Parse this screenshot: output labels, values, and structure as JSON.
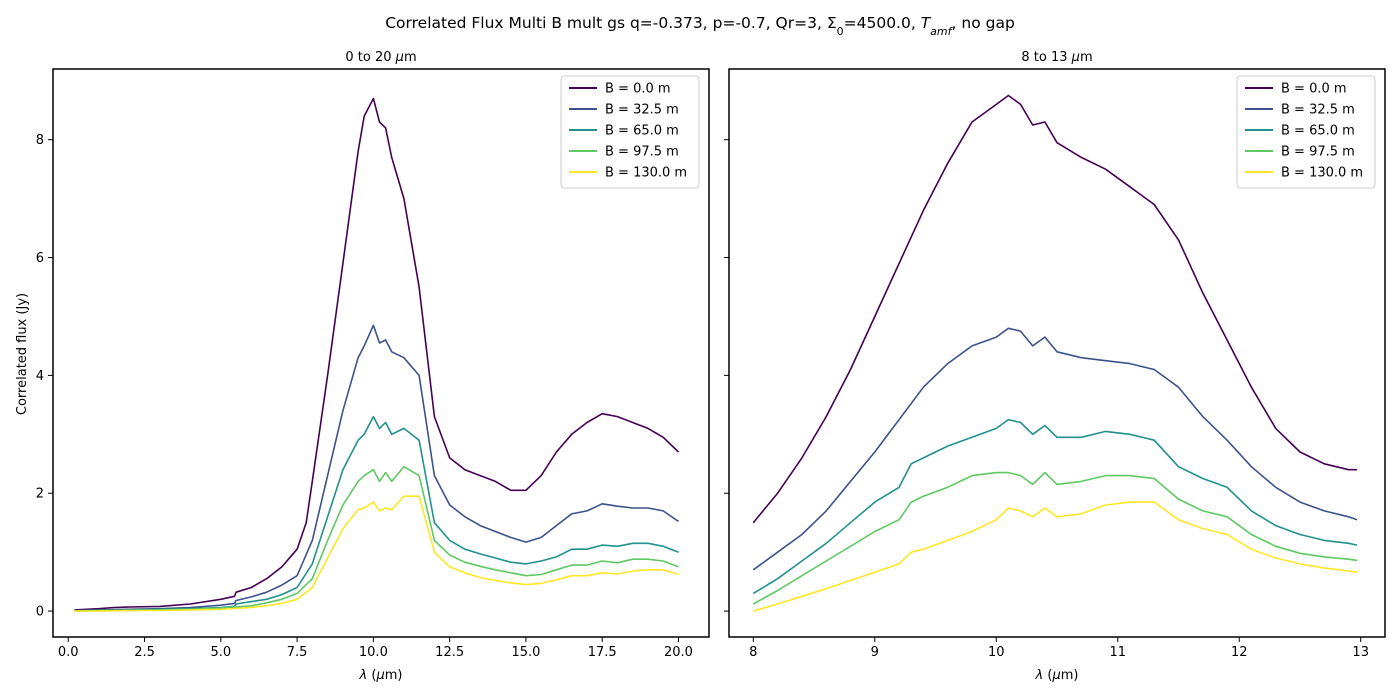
{
  "suptitle": {
    "prefix": "Correlated Flux Multi B mult gs q=-0.373, p=-0.7, Qr=3, Σ",
    "sub0": "0",
    "middle": "=4500.0, ",
    "T": "T",
    "Tsub": "amf",
    "suffix": ", no gap"
  },
  "ylabel": "Correlated flux (Jy)",
  "xlabel_prefix": "λ (",
  "xlabel_mu": "μ",
  "xlabel_suffix": "m)",
  "colors": [
    "#440154",
    "#3b528b",
    "#21918c",
    "#5ec962",
    "#fde725"
  ],
  "chart_data": [
    {
      "type": "line",
      "title_prefix": "0 to 20 ",
      "title_unit_mu": "μ",
      "title_unit_rest": "m",
      "xlabel": "λ (μm)",
      "ylabel": "Correlated flux (Jy)",
      "xlim": [
        -0.5,
        21.0
      ],
      "ylim": [
        -0.44,
        9.2
      ],
      "xticks": [
        0.0,
        2.5,
        5.0,
        7.5,
        10.0,
        12.5,
        15.0,
        17.5,
        20.0
      ],
      "xtick_labels": [
        "0.0",
        "2.5",
        "5.0",
        "7.5",
        "10.0",
        "12.5",
        "15.0",
        "17.5",
        "20.0"
      ],
      "yticks": [
        0,
        2,
        4,
        6,
        8
      ],
      "ytick_labels": [
        "0",
        "2",
        "4",
        "6",
        "8"
      ],
      "legend_position": "upper right",
      "series": [
        {
          "name": "B = 0.0 m",
          "x": [
            0.2,
            1.0,
            1.5,
            2.0,
            3.0,
            4.0,
            5.0,
            5.45,
            5.5,
            6.0,
            6.5,
            7.0,
            7.5,
            7.8,
            8.0,
            8.5,
            9.0,
            9.5,
            9.7,
            10.0,
            10.2,
            10.4,
            10.6,
            11.0,
            11.5,
            12.0,
            12.5,
            13.0,
            13.5,
            14.0,
            14.5,
            15.0,
            15.5,
            16.0,
            16.5,
            17.0,
            17.5,
            18.0,
            18.5,
            19.0,
            19.5,
            20.0
          ],
          "y": [
            0.02,
            0.04,
            0.06,
            0.07,
            0.08,
            0.12,
            0.2,
            0.25,
            0.32,
            0.4,
            0.55,
            0.75,
            1.05,
            1.5,
            2.2,
            4.0,
            5.9,
            7.8,
            8.4,
            8.7,
            8.3,
            8.2,
            7.7,
            7.0,
            5.5,
            3.3,
            2.6,
            2.4,
            2.3,
            2.2,
            2.05,
            2.05,
            2.3,
            2.7,
            3.0,
            3.2,
            3.35,
            3.3,
            3.2,
            3.1,
            2.95,
            2.7
          ]
        },
        {
          "name": "B = 32.5 m",
          "x": [
            0.2,
            1.0,
            2.0,
            3.0,
            4.0,
            5.0,
            5.45,
            5.5,
            6.0,
            6.5,
            7.0,
            7.5,
            8.0,
            8.5,
            9.0,
            9.5,
            9.7,
            10.0,
            10.2,
            10.4,
            10.6,
            11.0,
            11.5,
            12.0,
            12.5,
            13.0,
            13.5,
            14.0,
            14.5,
            15.0,
            15.5,
            16.0,
            16.5,
            17.0,
            17.5,
            18.0,
            18.5,
            19.0,
            19.5,
            20.0
          ],
          "y": [
            0.01,
            0.02,
            0.03,
            0.04,
            0.06,
            0.1,
            0.13,
            0.18,
            0.24,
            0.32,
            0.44,
            0.6,
            1.2,
            2.3,
            3.4,
            4.3,
            4.5,
            4.85,
            4.55,
            4.6,
            4.4,
            4.3,
            4.0,
            2.3,
            1.8,
            1.6,
            1.45,
            1.35,
            1.25,
            1.17,
            1.25,
            1.45,
            1.65,
            1.7,
            1.82,
            1.78,
            1.75,
            1.75,
            1.7,
            1.52
          ]
        },
        {
          "name": "B = 65.0 m",
          "x": [
            0.2,
            1.0,
            2.0,
            3.0,
            4.0,
            5.0,
            5.45,
            5.5,
            6.0,
            6.5,
            7.0,
            7.5,
            8.0,
            8.5,
            9.0,
            9.5,
            9.7,
            10.0,
            10.2,
            10.4,
            10.6,
            11.0,
            11.5,
            12.0,
            12.5,
            13.0,
            13.5,
            14.0,
            14.5,
            15.0,
            15.5,
            16.0,
            16.5,
            17.0,
            17.5,
            18.0,
            18.5,
            19.0,
            19.5,
            20.0
          ],
          "y": [
            0.0,
            0.01,
            0.02,
            0.03,
            0.04,
            0.06,
            0.08,
            0.12,
            0.16,
            0.2,
            0.28,
            0.4,
            0.8,
            1.6,
            2.4,
            2.9,
            3.0,
            3.3,
            3.1,
            3.2,
            3.0,
            3.1,
            2.9,
            1.5,
            1.2,
            1.05,
            0.97,
            0.9,
            0.83,
            0.8,
            0.85,
            0.92,
            1.05,
            1.05,
            1.12,
            1.1,
            1.15,
            1.15,
            1.1,
            1.0
          ]
        },
        {
          "name": "B = 97.5 m",
          "x": [
            0.2,
            1.0,
            2.0,
            3.0,
            4.0,
            5.0,
            6.0,
            6.5,
            7.0,
            7.5,
            8.0,
            8.5,
            9.0,
            9.5,
            9.7,
            10.0,
            10.2,
            10.4,
            10.6,
            11.0,
            11.5,
            12.0,
            12.5,
            13.0,
            13.5,
            14.0,
            14.5,
            15.0,
            15.5,
            16.0,
            16.5,
            17.0,
            17.5,
            18.0,
            18.5,
            19.0,
            19.5,
            20.0
          ],
          "y": [
            0.0,
            0.01,
            0.01,
            0.02,
            0.03,
            0.05,
            0.09,
            0.14,
            0.2,
            0.3,
            0.55,
            1.2,
            1.8,
            2.2,
            2.3,
            2.4,
            2.2,
            2.35,
            2.2,
            2.45,
            2.3,
            1.2,
            0.95,
            0.83,
            0.76,
            0.7,
            0.65,
            0.6,
            0.62,
            0.7,
            0.78,
            0.78,
            0.85,
            0.82,
            0.88,
            0.88,
            0.85,
            0.75
          ]
        },
        {
          "name": "B = 130.0 m",
          "x": [
            0.2,
            1.0,
            2.0,
            3.0,
            4.0,
            5.0,
            6.0,
            6.5,
            7.0,
            7.5,
            8.0,
            8.5,
            9.0,
            9.5,
            9.7,
            10.0,
            10.2,
            10.4,
            10.6,
            11.0,
            11.5,
            12.0,
            12.5,
            13.0,
            13.5,
            14.0,
            14.5,
            15.0,
            15.5,
            16.0,
            16.5,
            17.0,
            17.5,
            18.0,
            18.5,
            19.0,
            19.5,
            20.0
          ],
          "y": [
            0.0,
            0.0,
            0.01,
            0.01,
            0.02,
            0.03,
            0.06,
            0.09,
            0.13,
            0.2,
            0.4,
            0.9,
            1.4,
            1.72,
            1.75,
            1.85,
            1.7,
            1.75,
            1.72,
            1.95,
            1.95,
            1.0,
            0.75,
            0.65,
            0.57,
            0.52,
            0.48,
            0.45,
            0.47,
            0.53,
            0.6,
            0.6,
            0.65,
            0.63,
            0.68,
            0.7,
            0.7,
            0.62
          ]
        }
      ]
    },
    {
      "type": "line",
      "title_prefix": "8 to 13 ",
      "title_unit_mu": "μ",
      "title_unit_rest": "m",
      "xlabel": "λ (μm)",
      "ylabel": "",
      "xlim": [
        7.8,
        13.2
      ],
      "ylim": [
        -0.44,
        9.2
      ],
      "xticks": [
        8,
        9,
        10,
        11,
        12,
        13
      ],
      "xtick_labels": [
        "8",
        "9",
        "10",
        "11",
        "12",
        "13"
      ],
      "yticks": [
        0,
        2,
        4,
        6,
        8
      ],
      "ytick_labels": [],
      "legend_position": "upper right",
      "series": [
        {
          "name": "B = 0.0 m",
          "x": [
            8.0,
            8.2,
            8.4,
            8.6,
            8.8,
            9.0,
            9.2,
            9.4,
            9.6,
            9.8,
            10.0,
            10.1,
            10.2,
            10.3,
            10.4,
            10.5,
            10.7,
            10.9,
            11.1,
            11.3,
            11.5,
            11.7,
            11.9,
            12.1,
            12.3,
            12.5,
            12.7,
            12.9,
            12.97
          ],
          "y": [
            1.5,
            2.0,
            2.6,
            3.3,
            4.1,
            5.0,
            5.9,
            6.8,
            7.6,
            8.3,
            8.6,
            8.75,
            8.6,
            8.25,
            8.3,
            7.95,
            7.7,
            7.5,
            7.2,
            6.9,
            6.3,
            5.4,
            4.6,
            3.8,
            3.1,
            2.7,
            2.5,
            2.4,
            2.4
          ]
        },
        {
          "name": "B = 32.5 m",
          "x": [
            8.0,
            8.2,
            8.4,
            8.6,
            8.8,
            9.0,
            9.2,
            9.4,
            9.6,
            9.8,
            10.0,
            10.1,
            10.2,
            10.3,
            10.4,
            10.5,
            10.7,
            10.9,
            11.1,
            11.3,
            11.5,
            11.7,
            11.9,
            12.1,
            12.3,
            12.5,
            12.7,
            12.9,
            12.97
          ],
          "y": [
            0.7,
            1.0,
            1.3,
            1.7,
            2.2,
            2.7,
            3.25,
            3.8,
            4.2,
            4.5,
            4.65,
            4.8,
            4.75,
            4.5,
            4.65,
            4.4,
            4.3,
            4.25,
            4.2,
            4.1,
            3.8,
            3.3,
            2.9,
            2.45,
            2.1,
            1.85,
            1.7,
            1.6,
            1.55
          ]
        },
        {
          "name": "B = 65.0 m",
          "x": [
            8.0,
            8.2,
            8.4,
            8.6,
            8.8,
            9.0,
            9.2,
            9.3,
            9.4,
            9.6,
            9.8,
            10.0,
            10.1,
            10.2,
            10.3,
            10.4,
            10.5,
            10.7,
            10.9,
            11.1,
            11.3,
            11.5,
            11.7,
            11.9,
            12.1,
            12.3,
            12.5,
            12.7,
            12.9,
            12.97
          ],
          "y": [
            0.3,
            0.55,
            0.85,
            1.15,
            1.5,
            1.85,
            2.1,
            2.5,
            2.6,
            2.8,
            2.95,
            3.1,
            3.25,
            3.2,
            3.0,
            3.15,
            2.95,
            2.95,
            3.05,
            3.0,
            2.9,
            2.45,
            2.25,
            2.1,
            1.7,
            1.45,
            1.3,
            1.2,
            1.15,
            1.12
          ]
        },
        {
          "name": "B = 97.5 m",
          "x": [
            8.0,
            8.2,
            8.4,
            8.6,
            8.8,
            9.0,
            9.2,
            9.3,
            9.4,
            9.6,
            9.8,
            10.0,
            10.1,
            10.2,
            10.3,
            10.4,
            10.5,
            10.7,
            10.9,
            11.1,
            11.3,
            11.5,
            11.7,
            11.9,
            12.1,
            12.3,
            12.5,
            12.7,
            12.9,
            12.97
          ],
          "y": [
            0.12,
            0.35,
            0.6,
            0.85,
            1.1,
            1.35,
            1.55,
            1.85,
            1.95,
            2.1,
            2.3,
            2.35,
            2.35,
            2.3,
            2.15,
            2.35,
            2.15,
            2.2,
            2.3,
            2.3,
            2.25,
            1.9,
            1.7,
            1.6,
            1.3,
            1.1,
            0.98,
            0.92,
            0.88,
            0.86
          ]
        },
        {
          "name": "B = 130.0 m",
          "x": [
            8.0,
            8.2,
            8.4,
            8.6,
            8.8,
            9.0,
            9.2,
            9.3,
            9.4,
            9.6,
            9.8,
            10.0,
            10.1,
            10.2,
            10.3,
            10.4,
            10.5,
            10.7,
            10.9,
            11.1,
            11.3,
            11.5,
            11.7,
            11.9,
            12.1,
            12.3,
            12.5,
            12.7,
            12.9,
            12.97
          ],
          "y": [
            0.0,
            0.12,
            0.25,
            0.38,
            0.52,
            0.66,
            0.8,
            1.0,
            1.05,
            1.2,
            1.35,
            1.55,
            1.75,
            1.7,
            1.6,
            1.75,
            1.6,
            1.65,
            1.8,
            1.85,
            1.85,
            1.55,
            1.4,
            1.3,
            1.05,
            0.9,
            0.8,
            0.73,
            0.68,
            0.66
          ]
        }
      ]
    }
  ]
}
